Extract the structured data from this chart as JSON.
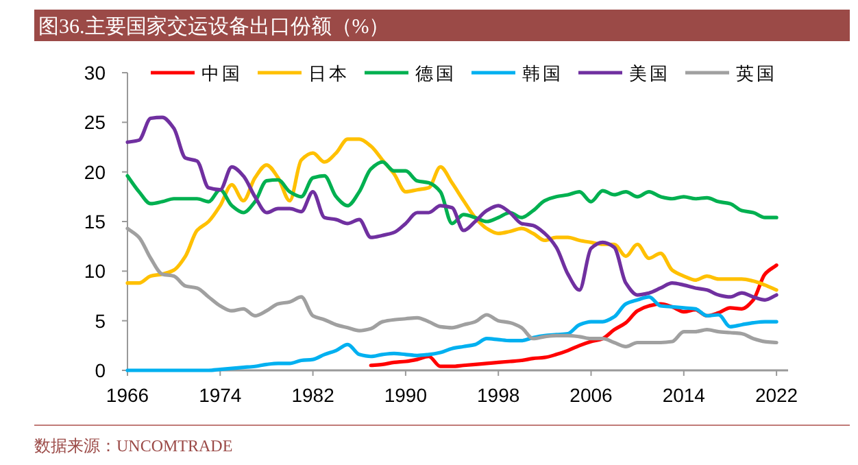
{
  "chart_data": {
    "type": "line",
    "title": "图36.主要国家交运设备出口份额（%）",
    "annotations": [
      "数据来源：UNCOMTRADE"
    ],
    "x": [
      1966,
      1967,
      1968,
      1969,
      1970,
      1971,
      1972,
      1973,
      1974,
      1975,
      1976,
      1977,
      1978,
      1979,
      1980,
      1981,
      1982,
      1983,
      1984,
      1985,
      1986,
      1987,
      1988,
      1989,
      1990,
      1991,
      1992,
      1993,
      1994,
      1995,
      1996,
      1997,
      1998,
      1999,
      2000,
      2001,
      2002,
      2003,
      2004,
      2005,
      2006,
      2007,
      2008,
      2009,
      2010,
      2011,
      2012,
      2013,
      2014,
      2015,
      2016,
      2017,
      2018,
      2019,
      2020,
      2021,
      2022
    ],
    "xlim": [
      1966,
      2023
    ],
    "xticks": [
      1966,
      1974,
      1982,
      1990,
      1998,
      2006,
      2014,
      2022
    ],
    "ylim": [
      0,
      30
    ],
    "yticks": [
      0,
      5,
      10,
      15,
      20,
      25,
      30
    ],
    "legend": "top",
    "grid": false,
    "series": [
      {
        "name": "中国",
        "color": "#ff0000",
        "values": [
          null,
          null,
          null,
          null,
          null,
          null,
          null,
          null,
          null,
          null,
          null,
          null,
          null,
          null,
          null,
          null,
          null,
          null,
          null,
          null,
          null,
          0.5,
          0.6,
          0.8,
          0.9,
          1.1,
          1.4,
          0.4,
          0.4,
          0.5,
          0.6,
          0.7,
          0.8,
          0.9,
          1.0,
          1.2,
          1.3,
          1.6,
          2.0,
          2.5,
          2.9,
          3.2,
          4.1,
          4.8,
          6.0,
          6.5,
          6.7,
          6.4,
          5.9,
          6.1,
          5.5,
          5.8,
          6.3,
          6.2,
          7.1,
          9.7,
          10.6
        ]
      },
      {
        "name": "日本",
        "color": "#ffc000",
        "values": [
          8.8,
          8.8,
          9.5,
          9.7,
          10.1,
          11.5,
          14.1,
          15.0,
          16.6,
          18.7,
          17.1,
          19.4,
          20.7,
          19.4,
          17.1,
          21.2,
          21.9,
          21.0,
          21.9,
          23.3,
          23.3,
          22.6,
          21.2,
          19.8,
          18.0,
          18.2,
          18.4,
          20.5,
          18.9,
          17.1,
          15.4,
          14.3,
          13.8,
          14.0,
          14.3,
          13.8,
          13.1,
          13.4,
          13.4,
          13.1,
          12.9,
          12.7,
          12.7,
          11.5,
          12.7,
          11.3,
          11.8,
          10.1,
          9.5,
          9.1,
          9.5,
          9.2,
          9.2,
          9.2,
          9.0,
          8.6,
          8.1
        ]
      },
      {
        "name": "德国",
        "color": "#00b050",
        "values": [
          19.6,
          18.0,
          16.8,
          17.0,
          17.3,
          17.3,
          17.3,
          17.0,
          18.2,
          16.6,
          15.9,
          17.0,
          19.1,
          19.2,
          18.0,
          17.5,
          19.4,
          19.6,
          17.5,
          16.6,
          18.0,
          20.3,
          21.0,
          20.1,
          20.1,
          19.1,
          18.9,
          18.0,
          14.8,
          15.7,
          15.4,
          15.0,
          15.4,
          15.9,
          15.4,
          16.1,
          17.1,
          17.5,
          17.7,
          18.0,
          17.0,
          18.1,
          17.7,
          18.0,
          17.5,
          18.0,
          17.5,
          17.3,
          17.5,
          17.3,
          17.4,
          17.0,
          16.8,
          16.1,
          15.9,
          15.4,
          15.4
        ]
      },
      {
        "name": "韩国",
        "color": "#00b0f0",
        "values": [
          0,
          0,
          0,
          0,
          0,
          0,
          0,
          0,
          0.1,
          0.2,
          0.3,
          0.4,
          0.6,
          0.7,
          0.7,
          1.0,
          1.1,
          1.6,
          2.0,
          2.6,
          1.6,
          1.4,
          1.6,
          1.7,
          1.6,
          1.5,
          1.6,
          1.8,
          2.2,
          2.4,
          2.6,
          3.2,
          3.1,
          3.0,
          3.0,
          3.3,
          3.5,
          3.6,
          3.7,
          4.6,
          4.9,
          4.9,
          5.4,
          6.7,
          7.1,
          7.4,
          6.5,
          6.4,
          6.3,
          6.2,
          5.5,
          5.6,
          4.4,
          4.6,
          4.8,
          4.9,
          4.9
        ]
      },
      {
        "name": "美国",
        "color": "#7030a0",
        "values": [
          23.0,
          23.2,
          25.4,
          25.5,
          24.4,
          21.4,
          21.1,
          18.4,
          18.2,
          20.5,
          19.6,
          17.5,
          15.9,
          16.3,
          16.3,
          16.0,
          18.0,
          15.4,
          15.2,
          14.8,
          15.2,
          13.4,
          13.6,
          13.9,
          14.8,
          15.9,
          15.9,
          16.6,
          16.4,
          14.1,
          15.0,
          16.1,
          16.6,
          15.9,
          14.8,
          14.6,
          13.8,
          12.4,
          9.7,
          8.1,
          12.3,
          12.9,
          12.4,
          8.8,
          7.6,
          7.8,
          8.3,
          8.8,
          8.6,
          8.3,
          8.1,
          7.6,
          7.4,
          7.8,
          7.4,
          7.1,
          7.6
        ]
      },
      {
        "name": "英国",
        "color": "#a0a0a0",
        "values": [
          14.3,
          13.4,
          11.3,
          9.7,
          9.5,
          8.5,
          8.3,
          7.4,
          6.5,
          6.0,
          6.2,
          5.5,
          6.0,
          6.7,
          6.9,
          7.4,
          5.5,
          5.1,
          4.6,
          4.3,
          4.0,
          4.2,
          4.9,
          5.1,
          5.2,
          5.3,
          4.9,
          4.4,
          4.3,
          4.6,
          4.9,
          5.6,
          5.0,
          4.8,
          4.3,
          3.2,
          3.4,
          3.5,
          3.5,
          3.4,
          3.2,
          3.2,
          2.8,
          2.4,
          2.8,
          2.8,
          2.8,
          2.9,
          3.9,
          3.9,
          4.1,
          3.9,
          3.8,
          3.7,
          3.2,
          2.9,
          2.8
        ]
      }
    ]
  }
}
